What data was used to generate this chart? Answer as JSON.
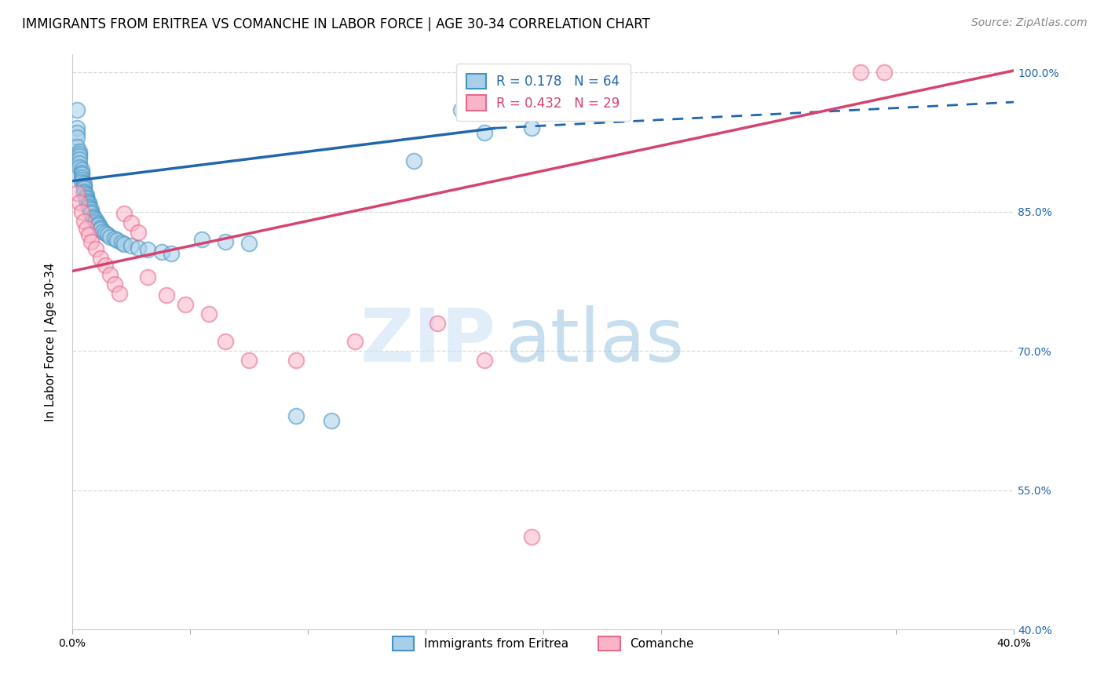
{
  "title": "IMMIGRANTS FROM ERITREA VS COMANCHE IN LABOR FORCE | AGE 30-34 CORRELATION CHART",
  "source": "Source: ZipAtlas.com",
  "ylabel": "In Labor Force | Age 30-34",
  "xlim": [
    0.0,
    0.4
  ],
  "ylim": [
    0.4,
    1.02
  ],
  "xticks": [
    0.0,
    0.05,
    0.1,
    0.15,
    0.2,
    0.25,
    0.3,
    0.35,
    0.4
  ],
  "xticklabels": [
    "0.0%",
    "",
    "",
    "",
    "",
    "",
    "",
    "",
    "40.0%"
  ],
  "yticks": [
    0.4,
    0.55,
    0.7,
    0.85,
    1.0
  ],
  "yticklabels": [
    "40.0%",
    "55.0%",
    "70.0%",
    "85.0%",
    "100.0%"
  ],
  "blue_R": 0.178,
  "blue_N": 64,
  "pink_R": 0.432,
  "pink_N": 29,
  "blue_fill": "#a8cfe8",
  "blue_edge": "#4393c3",
  "pink_fill": "#f9b4c8",
  "pink_edge": "#e8698a",
  "blue_line_color": "#2166ac",
  "pink_line_color": "#d6436e",
  "blue_label": "Immigrants from Eritrea",
  "pink_label": "Comanche",
  "watermark_zip": "ZIP",
  "watermark_atlas": "atlas",
  "blue_line_x0": 0.0,
  "blue_line_y0": 0.883,
  "blue_line_x1": 0.18,
  "blue_line_y1": 0.94,
  "blue_line_dash_x0": 0.18,
  "blue_line_dash_y0": 0.94,
  "blue_line_dash_x1": 0.4,
  "blue_line_dash_y1": 0.968,
  "pink_line_x0": 0.0,
  "pink_line_y0": 0.786,
  "pink_line_x1": 0.4,
  "pink_line_y1": 1.002,
  "grid_color": "#d0d0d0",
  "background_color": "#ffffff",
  "title_fontsize": 12,
  "axis_label_fontsize": 11,
  "tick_fontsize": 10,
  "legend_fontsize": 12,
  "source_fontsize": 10,
  "blue_scatter_x": [
    0.002,
    0.002,
    0.002,
    0.002,
    0.002,
    0.003,
    0.003,
    0.003,
    0.003,
    0.003,
    0.003,
    0.004,
    0.004,
    0.004,
    0.004,
    0.004,
    0.004,
    0.005,
    0.005,
    0.005,
    0.005,
    0.005,
    0.006,
    0.006,
    0.006,
    0.006,
    0.007,
    0.007,
    0.007,
    0.007,
    0.008,
    0.008,
    0.008,
    0.009,
    0.009,
    0.01,
    0.01,
    0.011,
    0.011,
    0.012,
    0.012,
    0.013,
    0.014,
    0.015,
    0.016,
    0.018,
    0.019,
    0.021,
    0.022,
    0.025,
    0.028,
    0.032,
    0.038,
    0.042,
    0.055,
    0.065,
    0.075,
    0.095,
    0.11,
    0.145,
    0.165,
    0.175,
    0.185,
    0.195
  ],
  "blue_scatter_y": [
    0.96,
    0.94,
    0.935,
    0.93,
    0.92,
    0.915,
    0.912,
    0.91,
    0.906,
    0.902,
    0.898,
    0.895,
    0.892,
    0.89,
    0.887,
    0.884,
    0.882,
    0.88,
    0.878,
    0.875,
    0.872,
    0.87,
    0.868,
    0.866,
    0.864,
    0.862,
    0.86,
    0.858,
    0.856,
    0.854,
    0.852,
    0.85,
    0.848,
    0.845,
    0.843,
    0.841,
    0.839,
    0.837,
    0.835,
    0.833,
    0.831,
    0.829,
    0.827,
    0.825,
    0.823,
    0.821,
    0.819,
    0.817,
    0.815,
    0.813,
    0.811,
    0.809,
    0.807,
    0.805,
    0.82,
    0.818,
    0.816,
    0.63,
    0.625,
    0.905,
    0.96,
    0.935,
    0.96,
    0.94
  ],
  "pink_scatter_x": [
    0.002,
    0.003,
    0.004,
    0.005,
    0.006,
    0.007,
    0.008,
    0.01,
    0.012,
    0.014,
    0.016,
    0.018,
    0.02,
    0.022,
    0.025,
    0.028,
    0.032,
    0.04,
    0.048,
    0.058,
    0.065,
    0.075,
    0.095,
    0.12,
    0.155,
    0.175,
    0.195,
    0.335,
    0.345
  ],
  "pink_scatter_y": [
    0.87,
    0.86,
    0.85,
    0.84,
    0.832,
    0.825,
    0.818,
    0.81,
    0.8,
    0.792,
    0.782,
    0.772,
    0.762,
    0.848,
    0.838,
    0.828,
    0.78,
    0.76,
    0.75,
    0.74,
    0.71,
    0.69,
    0.69,
    0.71,
    0.73,
    0.69,
    0.5,
    1.0,
    1.0
  ]
}
